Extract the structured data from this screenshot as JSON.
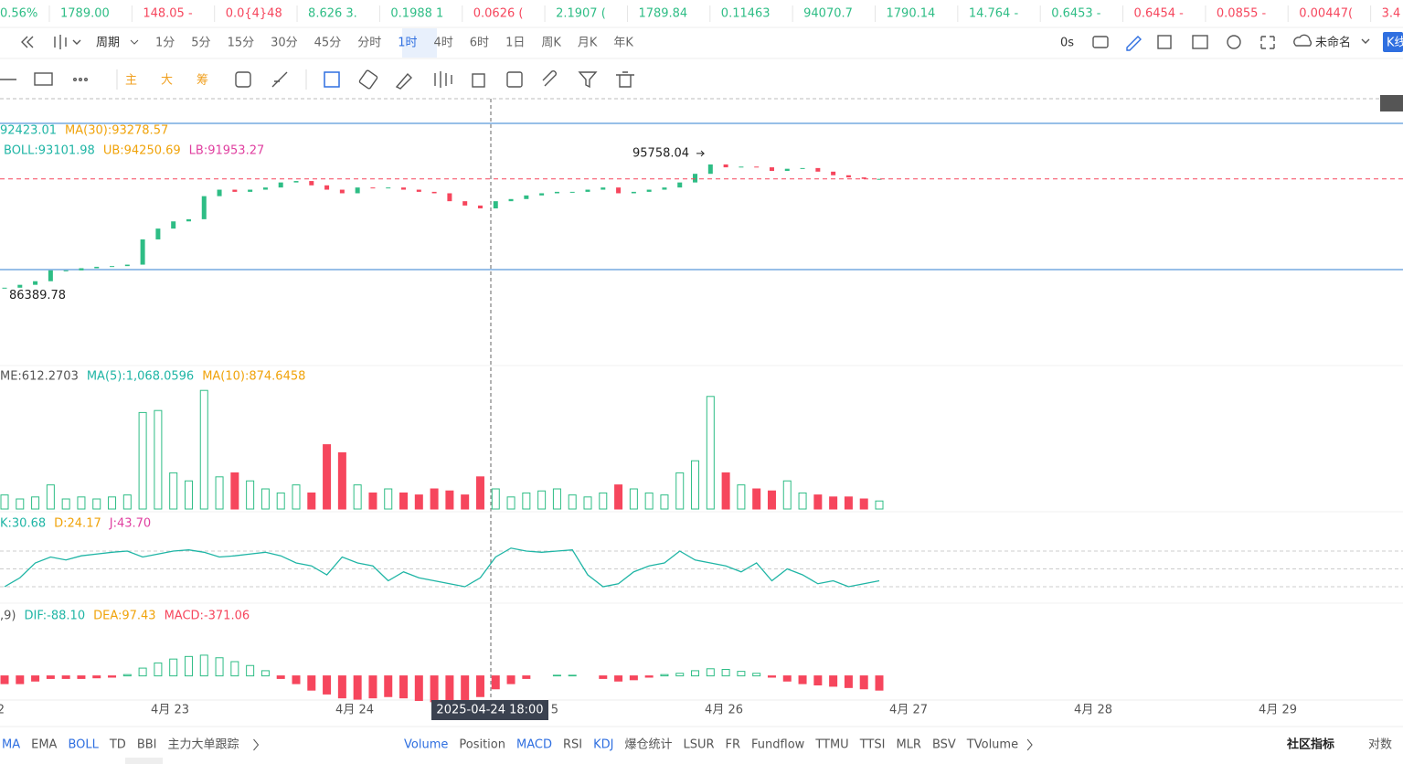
{
  "ticker_strip": [
    {
      "text": "0.56%",
      "trend": "up"
    },
    {
      "text": "1789.00",
      "trend": "up"
    },
    {
      "text": "148.05 -",
      "trend": "down"
    },
    {
      "text": "0.0{4}48",
      "trend": "down"
    },
    {
      "text": "8.626 3.",
      "trend": "up"
    },
    {
      "text": "0.1988 1",
      "trend": "up"
    },
    {
      "text": "0.0626 (",
      "trend": "down"
    },
    {
      "text": "2.1907 (",
      "trend": "up"
    },
    {
      "text": "1789.84",
      "trend": "up"
    },
    {
      "text": "0.11463",
      "trend": "up"
    },
    {
      "text": "94070.7",
      "trend": "up"
    },
    {
      "text": "1790.14",
      "trend": "up"
    },
    {
      "text": "14.764 -",
      "trend": "up"
    },
    {
      "text": "0.6453 -",
      "trend": "up"
    },
    {
      "text": "0.6454 -",
      "trend": "down"
    },
    {
      "text": "0.0855 -",
      "trend": "down"
    },
    {
      "text": "0.00447(",
      "trend": "down"
    },
    {
      "text": "3.4",
      "trend": "down"
    }
  ],
  "toolbar": {
    "period_label": "周期",
    "periods": [
      "1分",
      "5分",
      "15分",
      "30分",
      "45分",
      "分时",
      "1时",
      "4时",
      "6时",
      "1日",
      "周K",
      "月K",
      "年K"
    ],
    "selected_period": 6,
    "countdown": "0s",
    "layout_name": "未命名",
    "chart_mode": "K线"
  },
  "drawing_toolbar": {
    "items": [
      "主",
      "大",
      "筹"
    ]
  },
  "chart_data": [
    {
      "type": "candlestick",
      "up_color": "#2ebd85",
      "down_color": "#f6465d",
      "legend": [
        {
          "text": "92423.01",
          "color": "#1fb5a5"
        },
        {
          "text": "MA(30):93278.57",
          "color": "#f0a30a"
        }
      ],
      "legend2": [
        {
          "text": "BOLL:93101.98",
          "color": "#1fb5a5"
        },
        {
          "text": "UB:94250.69",
          "color": "#f0a30a"
        },
        {
          "text": "LB:91953.27",
          "color": "#e040a0"
        }
      ],
      "high_label": 95758.04,
      "low_label": 86389.78,
      "closes": [
        86700,
        86900,
        87150,
        87900,
        87900,
        88050,
        88150,
        88200,
        88300,
        90050,
        90800,
        91300,
        91450,
        93050,
        93500,
        93350,
        93500,
        93650,
        94000,
        94100,
        93800,
        93500,
        93250,
        93650,
        93600,
        93650,
        93500,
        93350,
        93250,
        92700,
        92400,
        92200,
        92700,
        92850,
        93100,
        93250,
        93350,
        93350,
        93500,
        93650,
        93250,
        93350,
        93500,
        93650,
        94000,
        94600,
        95250,
        95050,
        95100,
        95050,
        94800,
        94950,
        95000,
        94750,
        94500,
        94350,
        94250,
        94250
      ],
      "ylim": [
        81300,
        100000
      ],
      "last_price_line": true
    },
    {
      "type": "bar",
      "legend": [
        {
          "text": "ME:612.2703",
          "color": "#555555"
        },
        {
          "text": "MA(5):1,068.0596",
          "color": "#1fb5a5"
        },
        {
          "text": "MA(10):874.6458",
          "color": "#f0a30a"
        }
      ],
      "values": [
        350,
        250,
        300,
        600,
        250,
        300,
        250,
        300,
        350,
        2400,
        2450,
        900,
        700,
        2950,
        800,
        900,
        700,
        500,
        400,
        600,
        400,
        1600,
        1400,
        600,
        400,
        500,
        400,
        350,
        500,
        450,
        350,
        800,
        500,
        300,
        400,
        450,
        500,
        350,
        300,
        400,
        600,
        500,
        400,
        350,
        900,
        1200,
        2800,
        900,
        600,
        500,
        450,
        700,
        400,
        350,
        300,
        300,
        250,
        200
      ],
      "ylim": [
        0,
        3000
      ]
    },
    {
      "type": "line",
      "legend": [
        {
          "text": "K:30.68",
          "color": "#1fb5a5"
        },
        {
          "text": "D:24.17",
          "color": "#f0a30a"
        },
        {
          "text": "J:43.70",
          "color": "#e040a0"
        }
      ],
      "values": [
        20,
        35,
        60,
        70,
        65,
        72,
        75,
        78,
        80,
        70,
        75,
        80,
        82,
        78,
        70,
        72,
        75,
        78,
        72,
        60,
        55,
        40,
        70,
        60,
        55,
        30,
        45,
        35,
        30,
        25,
        20,
        35,
        70,
        85,
        80,
        78,
        80,
        82,
        40,
        20,
        25,
        45,
        55,
        60,
        80,
        65,
        60,
        55,
        45,
        60,
        30,
        50,
        40,
        25,
        30,
        20,
        25,
        30
      ],
      "color": "#1fb5a5",
      "reference_lines": [
        80,
        50,
        20
      ],
      "ylim": [
        0,
        100
      ]
    },
    {
      "type": "bar",
      "legend": [
        {
          "text": ",9)",
          "color": "#555555"
        },
        {
          "text": "DIF:-88.10",
          "color": "#1fb5a5"
        },
        {
          "text": "DEA:97.43",
          "color": "#f0a30a"
        },
        {
          "text": "MACD:-371.06",
          "color": "#f6465d"
        }
      ],
      "values": [
        -60,
        -60,
        -40,
        -20,
        -20,
        -20,
        -15,
        -10,
        10,
        60,
        100,
        130,
        150,
        160,
        140,
        110,
        80,
        40,
        -20,
        -60,
        -110,
        -140,
        -170,
        -180,
        -170,
        -160,
        -170,
        -190,
        -200,
        -220,
        -200,
        -160,
        -100,
        -60,
        -20,
        0,
        5,
        5,
        0,
        -20,
        -40,
        -30,
        -10,
        10,
        20,
        40,
        55,
        50,
        35,
        20,
        -10,
        -40,
        -60,
        -70,
        -80,
        -90,
        -100,
        -110
      ],
      "ylim": [
        -250,
        350
      ]
    }
  ],
  "x_axis": [
    "2",
    "4月 23",
    "4月 24",
    "5",
    "4月 26",
    "4月 27",
    "4月 28",
    "4月 29"
  ],
  "crosshair_label": "2025-04-24 18:00",
  "indicator_tabs": {
    "main": [
      {
        "text": "MA",
        "active": true
      },
      {
        "text": "EMA"
      },
      {
        "text": "BOLL",
        "active": true
      },
      {
        "text": "TD"
      },
      {
        "text": "BBI"
      },
      {
        "text": "主力大单跟踪"
      }
    ],
    "sub": [
      {
        "text": "Volume",
        "active": true
      },
      {
        "text": "Position"
      },
      {
        "text": "MACD",
        "active": true
      },
      {
        "text": "RSI"
      },
      {
        "text": "KDJ",
        "active": true
      },
      {
        "text": "爆仓统计"
      },
      {
        "text": "LSUR"
      },
      {
        "text": "FR"
      },
      {
        "text": "Fundflow"
      },
      {
        "text": "TTMU"
      },
      {
        "text": "TTSI"
      },
      {
        "text": "MLR"
      },
      {
        "text": "BSV"
      },
      {
        "text": "TVolume"
      }
    ],
    "community": "社区指标",
    "log_scale": "对数"
  }
}
